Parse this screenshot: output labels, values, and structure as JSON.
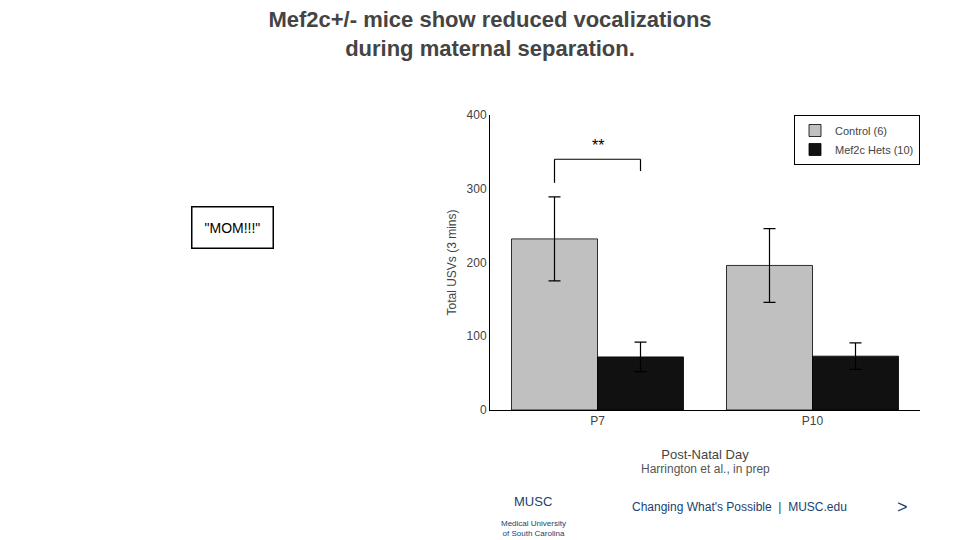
{
  "chart_data": {
    "type": "bar",
    "title": "Mef2c+/- mice show reduced vocalizations",
    "subtitle": "during maternal separation.",
    "categories": [
      "P7",
      "P10"
    ],
    "series": [
      {
        "name": "Control (6)",
        "color": "#c0c0c0",
        "values": [
          232,
          196
        ],
        "errors": [
          57,
          50
        ]
      },
      {
        "name": "Mef2c Hets (10)",
        "color": "#111111",
        "values": [
          72,
          73
        ],
        "errors": [
          20,
          18
        ]
      }
    ],
    "xlabel": "Post-Natal Day",
    "ylabel": "Total USVs (3 mins)",
    "ylim": [
      0,
      400
    ],
    "yticks": [
      0,
      100,
      200,
      300,
      400
    ],
    "grid": false,
    "legend": "upper right",
    "annotations": [
      "**",
      "\"MOM!!!\"",
      "Harrington et al., in prep",
      "MUSC",
      "Medical University\nof South Carolina",
      "Changing What's Possible  |  MUSC.edu",
      ">"
    ]
  }
}
